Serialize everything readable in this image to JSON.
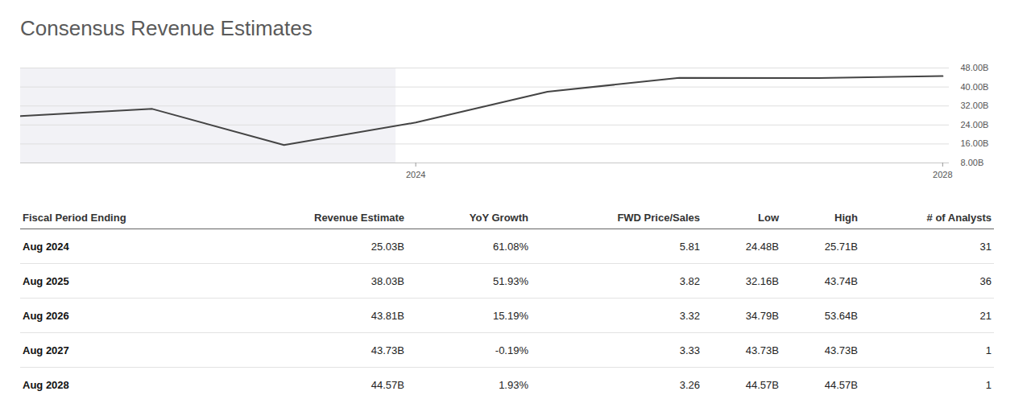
{
  "chart_data": {
    "type": "line",
    "title": "Consensus Revenue Estimates",
    "x": [
      2021,
      2022,
      2023,
      2024,
      2025,
      2026,
      2027,
      2028
    ],
    "values": [
      27.71,
      30.76,
      15.54,
      25.03,
      38.03,
      43.81,
      43.73,
      44.57
    ],
    "color": "#444444",
    "xlim": [
      2021,
      2028.05
    ],
    "xticks": [
      2024,
      2028
    ],
    "ylim": [
      8,
      48
    ],
    "yticks": [
      {
        "value": 8,
        "label": "8.00B"
      },
      {
        "value": 16,
        "label": "16.00B"
      },
      {
        "value": 24,
        "label": "24.00B"
      },
      {
        "value": 32,
        "label": "32.00B"
      },
      {
        "value": 40,
        "label": "40.00B"
      },
      {
        "value": 48,
        "label": "48.00B"
      }
    ],
    "grid": true,
    "shaded_range": [
      2021,
      2023.85
    ]
  },
  "table": {
    "columns": [
      "Fiscal Period Ending",
      "Revenue Estimate",
      "YoY Growth",
      "FWD Price/Sales",
      "Low",
      "High",
      "# of Analysts"
    ],
    "rows": [
      [
        "Aug 2024",
        "25.03B",
        "61.08%",
        "5.81",
        "24.48B",
        "25.71B",
        "31"
      ],
      [
        "Aug 2025",
        "38.03B",
        "51.93%",
        "3.82",
        "32.16B",
        "43.74B",
        "36"
      ],
      [
        "Aug 2026",
        "43.81B",
        "15.19%",
        "3.32",
        "34.79B",
        "53.64B",
        "21"
      ],
      [
        "Aug 2027",
        "43.73B",
        "-0.19%",
        "3.33",
        "43.73B",
        "43.73B",
        "1"
      ],
      [
        "Aug 2028",
        "44.57B",
        "1.93%",
        "3.26",
        "44.57B",
        "44.57B",
        "1"
      ]
    ]
  }
}
